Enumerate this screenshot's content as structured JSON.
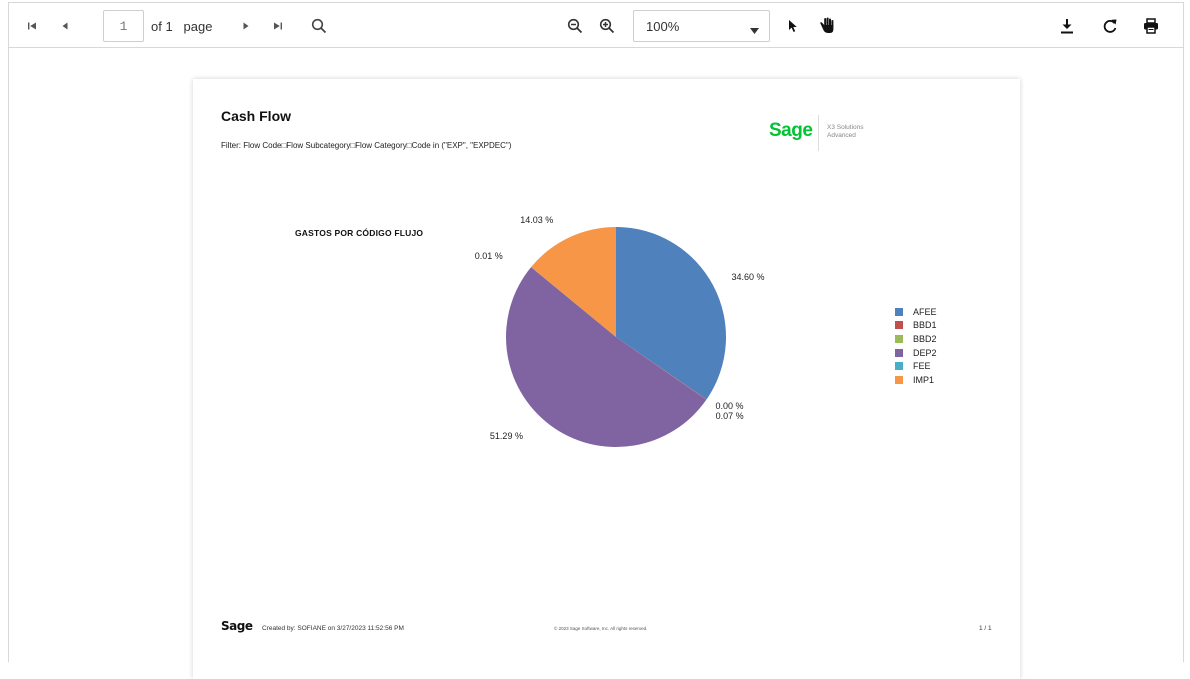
{
  "toolbar": {
    "page_number": "1",
    "of_label": "of 1",
    "page_word": "page",
    "zoom_value": "100%"
  },
  "icons": [
    "first-page-icon",
    "prev-page-icon",
    "next-page-icon",
    "last-page-icon",
    "search-icon",
    "zoom-out-icon",
    "zoom-in-icon",
    "dropdown-caret-icon",
    "pointer-icon",
    "hand-icon",
    "download-icon",
    "refresh-icon",
    "print-icon"
  ],
  "report": {
    "title": "Cash Flow",
    "filter": "Filter: Flow Code□Flow Subcategory□Flow Category□Code in (\"EXP\", \"EXPDEC\")",
    "logo": "Sage",
    "logo_sub_1": "X3 Solutions",
    "logo_sub_2": "Advanced",
    "footer_logo": "Sage",
    "footer_created": "Created by: SOFIANE on 3/27/2023 11:52:56 PM",
    "footer_copyright": "© 2023 Sage Software, Inc. All rights reserved.",
    "footer_page": "1 / 1"
  },
  "chart_data": {
    "type": "pie",
    "title": "GASTOS POR CÓDIGO FLUJO",
    "slices": [
      {
        "name": "AFEE",
        "value": 34.6,
        "label": "34.60 %",
        "color": "#4f81bd"
      },
      {
        "name": "BBD1",
        "value": 0.07,
        "label": "0.07 %",
        "color": "#c0504d"
      },
      {
        "name": "BBD2",
        "value": 0.0,
        "label": "0.00 %",
        "color": "#9bbb59"
      },
      {
        "name": "DEP2",
        "value": 51.29,
        "label": "51.29 %",
        "color": "#8064a2"
      },
      {
        "name": "FEE",
        "value": 0.01,
        "label": "0.01 %",
        "color": "#4bacc6"
      },
      {
        "name": "IMP1",
        "value": 14.03,
        "label": "14.03 %",
        "color": "#f79646"
      }
    ],
    "legend": "right"
  }
}
